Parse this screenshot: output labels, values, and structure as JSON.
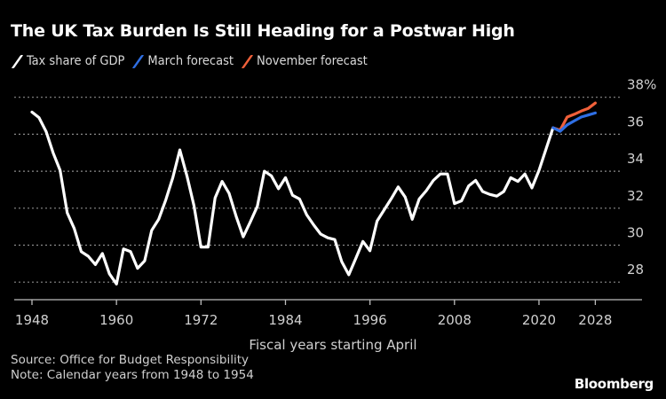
{
  "title": "The UK Tax Burden Is Still Heading for a Postwar High",
  "legend": [
    {
      "label": "Tax share of GDP",
      "color": "#ffffff"
    },
    {
      "label": "March forecast",
      "color": "#2f6fe4"
    },
    {
      "label": "November forecast",
      "color": "#f0603a"
    }
  ],
  "footer": {
    "source": "Source: Office for Budget Responsibility",
    "note": "Note: Calendar years from 1948 to 1954",
    "brand": "Bloomberg"
  },
  "chart_data": {
    "type": "line",
    "title": "The UK Tax Burden Is Still Heading for a Postwar High",
    "xlabel": "Fiscal years starting April",
    "ylabel": "",
    "xlim": [
      1946,
      2035
    ],
    "ylim": [
      27.5,
      38
    ],
    "grid": true,
    "legend_position": "top-left",
    "x_ticks": [
      1948,
      1960,
      1972,
      1984,
      1996,
      2008,
      2020,
      2028
    ],
    "y_ticks": [
      {
        "value": 28,
        "label": "28"
      },
      {
        "value": 30,
        "label": "30"
      },
      {
        "value": 32,
        "label": "32"
      },
      {
        "value": 34,
        "label": "34"
      },
      {
        "value": 36,
        "label": "36"
      },
      {
        "value": 38,
        "label": "38%"
      }
    ],
    "series": [
      {
        "name": "Tax share of GDP",
        "color": "#ffffff",
        "x": [
          1948,
          1949,
          1950,
          1951,
          1952,
          1953,
          1954,
          1955,
          1956,
          1957,
          1958,
          1959,
          1960,
          1961,
          1962,
          1963,
          1964,
          1965,
          1966,
          1967,
          1968,
          1969,
          1970,
          1971,
          1972,
          1973,
          1974,
          1975,
          1976,
          1977,
          1978,
          1979,
          1980,
          1981,
          1982,
          1983,
          1984,
          1985,
          1986,
          1987,
          1988,
          1989,
          1990,
          1991,
          1992,
          1993,
          1994,
          1995,
          1996,
          1997,
          1998,
          1999,
          2000,
          2001,
          2002,
          2003,
          2004,
          2005,
          2006,
          2007,
          2008,
          2009,
          2010,
          2011,
          2012,
          2013,
          2014,
          2015,
          2016,
          2017,
          2018,
          2019,
          2020,
          2021,
          2022
        ],
        "values": [
          37.2,
          36.9,
          36.15,
          35.0,
          34.05,
          31.75,
          30.9,
          29.65,
          29.4,
          28.95,
          29.55,
          28.45,
          27.9,
          29.8,
          29.65,
          28.75,
          29.15,
          30.8,
          31.4,
          32.45,
          33.65,
          35.15,
          33.75,
          32.15,
          29.9,
          29.9,
          32.55,
          33.45,
          32.8,
          31.55,
          30.45,
          31.25,
          32.1,
          34.0,
          33.75,
          33.05,
          33.65,
          32.7,
          32.5,
          31.65,
          31.1,
          30.6,
          30.4,
          30.3,
          29.1,
          28.4,
          29.3,
          30.2,
          29.7,
          31.3,
          31.9,
          32.5,
          33.15,
          32.6,
          31.4,
          32.5,
          32.95,
          33.5,
          33.85,
          33.85,
          32.25,
          32.4,
          33.2,
          33.5,
          32.9,
          32.75,
          32.65,
          32.9,
          33.65,
          33.45,
          33.85,
          33.1,
          34.05,
          35.2,
          36.35
        ]
      },
      {
        "name": "November forecast",
        "color": "#f0603a",
        "x": [
          2022,
          2023,
          2024,
          2025,
          2026,
          2027,
          2028
        ],
        "values": [
          36.35,
          36.22,
          36.93,
          37.08,
          37.25,
          37.4,
          37.69
        ]
      },
      {
        "name": "March forecast",
        "color": "#2f6fe4",
        "x": [
          2022,
          2023,
          2024,
          2025,
          2026,
          2027,
          2028
        ],
        "values": [
          36.35,
          36.16,
          36.51,
          36.72,
          36.93,
          37.04,
          37.15
        ]
      }
    ]
  }
}
